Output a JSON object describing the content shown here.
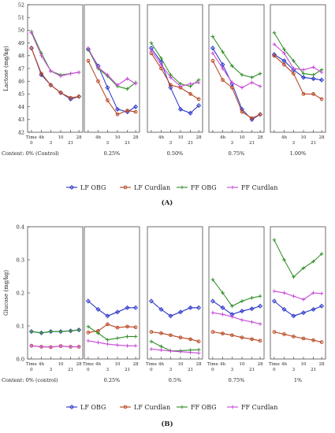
{
  "chart_data": [
    {
      "type": "line",
      "panel_label": "(A)",
      "ylabel": "Lactose (mg/kg)",
      "ylim": [
        42,
        52
      ],
      "yticks": [
        42,
        43,
        44,
        45,
        46,
        47,
        48,
        49,
        50,
        51,
        52
      ],
      "x": [
        "Time 0",
        "4h",
        "3",
        "10",
        "21",
        "28"
      ],
      "x_tick_rows": {
        "first_panel": {
          "row1": [
            "Time",
            "4h",
            "10",
            "28"
          ],
          "row2": [
            "0",
            "3",
            "21"
          ]
        },
        "other_panels": {
          "row1": [
            "4h",
            "10",
            "28"
          ],
          "row2": [
            "3",
            "21"
          ]
        }
      },
      "subplots": [
        {
          "label": "Content: 0% (Control)",
          "series": [
            {
              "name": "LF OBG",
              "values": [
                48.6,
                46.5,
                45.7,
                45.1,
                44.6,
                44.8
              ]
            },
            {
              "name": "LF Curdlan",
              "values": [
                48.6,
                46.6,
                45.7,
                45.1,
                44.7,
                44.8
              ]
            },
            {
              "name": "FF OBG",
              "values": [
                49.9,
                48.2,
                46.8,
                46.5,
                46.6,
                46.7
              ]
            },
            {
              "name": "FF Curdlan",
              "values": [
                49.8,
                48.0,
                46.8,
                46.4,
                46.6,
                46.7
              ]
            }
          ]
        },
        {
          "label": "0.25%",
          "series": [
            {
              "name": "LF OBG",
              "values": [
                48.5,
                47.2,
                45.5,
                43.8,
                43.6,
                44.0
              ]
            },
            {
              "name": "LF Curdlan",
              "values": [
                47.6,
                46.0,
                44.5,
                43.4,
                43.7,
                43.6
              ]
            },
            {
              "name": "FF OBG",
              "values": [
                48.5,
                47.0,
                46.4,
                45.6,
                45.4,
                45.9
              ]
            },
            {
              "name": "FF Curdlan",
              "values": [
                48.6,
                47.1,
                46.5,
                45.7,
                46.2,
                45.8
              ]
            }
          ]
        },
        {
          "label": "0.50%",
          "series": [
            {
              "name": "LF OBG",
              "values": [
                48.6,
                47.5,
                45.5,
                43.8,
                43.5,
                44.1
              ]
            },
            {
              "name": "LF Curdlan",
              "values": [
                48.2,
                47.0,
                45.7,
                45.5,
                45.0,
                44.6
              ]
            },
            {
              "name": "FF OBG",
              "values": [
                49.0,
                47.8,
                46.5,
                45.8,
                45.6,
                46.1
              ]
            },
            {
              "name": "FF Curdlan",
              "values": [
                48.4,
                47.3,
                46.3,
                45.6,
                45.8,
                45.9
              ]
            }
          ]
        },
        {
          "label": "0.75%",
          "series": [
            {
              "name": "LF OBG",
              "values": [
                48.6,
                47.3,
                45.8,
                43.8,
                43.0,
                43.4
              ]
            },
            {
              "name": "LF Curdlan",
              "values": [
                47.6,
                46.1,
                45.5,
                43.6,
                43.1,
                43.4
              ]
            },
            {
              "name": "FF OBG",
              "values": [
                49.5,
                48.3,
                47.2,
                46.5,
                46.3,
                46.6
              ]
            },
            {
              "name": "FF Curdlan",
              "values": [
                48.2,
                47.0,
                45.9,
                45.5,
                45.9,
                45.6
              ]
            }
          ]
        },
        {
          "label": "1.00%",
          "series": [
            {
              "name": "LF OBG",
              "values": [
                48.1,
                47.6,
                46.9,
                46.3,
                46.2,
                46.1
              ]
            },
            {
              "name": "LF Curdlan",
              "values": [
                48.0,
                47.3,
                46.6,
                45.0,
                45.0,
                44.6
              ]
            },
            {
              "name": "FF OBG",
              "values": [
                49.8,
                48.5,
                47.6,
                46.6,
                46.5,
                46.9
              ]
            },
            {
              "name": "FF Curdlan",
              "values": [
                48.9,
                48.2,
                47.0,
                46.9,
                47.1,
                46.7
              ]
            }
          ]
        }
      ],
      "legend": [
        "LF OBG",
        "LF Curdlan",
        "FF OBG",
        "FF Curdlan"
      ]
    },
    {
      "type": "line",
      "panel_label": "(B)",
      "ylabel": "Glucose (mg/kg)",
      "ylim": [
        0.0,
        0.4
      ],
      "yticks": [
        0.0,
        0.1,
        0.2,
        0.3,
        0.4
      ],
      "x": [
        "Time 0",
        "4h",
        "3",
        "10",
        "21",
        "28"
      ],
      "x_tick_rows": {
        "first_panel": {
          "row1": [
            "Time",
            "4h",
            "10",
            "28"
          ],
          "row2": [
            "0",
            "3",
            "21"
          ]
        },
        "other_panels": {
          "row1": [
            "Time",
            "4h",
            "10",
            "28"
          ],
          "row2": [
            "0",
            "3",
            "21"
          ]
        }
      },
      "subplots": [
        {
          "label": "Content: 0% (control)",
          "series": [
            {
              "name": "LF OBG",
              "values": [
                0.083,
                0.079,
                0.083,
                0.083,
                0.085,
                0.088
              ]
            },
            {
              "name": "LF Curdlan",
              "values": [
                0.04,
                0.037,
                0.036,
                0.039,
                0.037,
                0.037
              ]
            },
            {
              "name": "FF OBG",
              "values": [
                0.083,
                0.079,
                0.083,
                0.083,
                0.085,
                0.088
              ]
            },
            {
              "name": "FF Curdlan",
              "values": [
                0.04,
                0.037,
                0.036,
                0.039,
                0.037,
                0.037
              ]
            }
          ]
        },
        {
          "label": "0.25%",
          "series": [
            {
              "name": "LF OBG",
              "values": [
                0.175,
                0.15,
                0.13,
                0.142,
                0.155,
                0.155
              ]
            },
            {
              "name": "LF Curdlan",
              "values": [
                0.08,
                0.085,
                0.105,
                0.095,
                0.098,
                0.096
              ]
            },
            {
              "name": "FF OBG",
              "values": [
                0.098,
                0.078,
                0.058,
                0.063,
                0.068,
                0.068
              ]
            },
            {
              "name": "FF Curdlan",
              "values": [
                0.055,
                0.05,
                0.045,
                0.042,
                0.04,
                0.04
              ]
            }
          ]
        },
        {
          "label": "0.5%",
          "series": [
            {
              "name": "LF OBG",
              "values": [
                0.175,
                0.15,
                0.13,
                0.142,
                0.155,
                0.155
              ]
            },
            {
              "name": "LF Curdlan",
              "values": [
                0.082,
                0.078,
                0.072,
                0.065,
                0.06,
                0.053
              ]
            },
            {
              "name": "FF OBG",
              "values": [
                0.053,
                0.038,
                0.025,
                0.025,
                0.027,
                0.028
              ]
            },
            {
              "name": "FF Curdlan",
              "values": [
                0.03,
                0.027,
                0.024,
                0.022,
                0.02,
                0.018
              ]
            }
          ]
        },
        {
          "label": "0.75%",
          "series": [
            {
              "name": "LF OBG",
              "values": [
                0.175,
                0.155,
                0.135,
                0.145,
                0.152,
                0.16
              ]
            },
            {
              "name": "LF Curdlan",
              "values": [
                0.082,
                0.077,
                0.072,
                0.065,
                0.06,
                0.055
              ]
            },
            {
              "name": "FF OBG",
              "values": [
                0.24,
                0.2,
                0.16,
                0.175,
                0.185,
                0.19
              ]
            },
            {
              "name": "FF Curdlan",
              "values": [
                0.14,
                0.135,
                0.128,
                0.118,
                0.112,
                0.106
              ]
            }
          ]
        },
        {
          "label": "1%",
          "series": [
            {
              "name": "LF OBG",
              "values": [
                0.175,
                0.15,
                0.13,
                0.14,
                0.15,
                0.16
              ]
            },
            {
              "name": "LF Curdlan",
              "values": [
                0.082,
                0.075,
                0.068,
                0.062,
                0.057,
                0.051
              ]
            },
            {
              "name": "FF OBG",
              "values": [
                0.36,
                0.3,
                0.248,
                0.275,
                0.295,
                0.318
              ]
            },
            {
              "name": "FF Curdlan",
              "values": [
                0.205,
                0.2,
                0.19,
                0.18,
                0.2,
                0.198
              ]
            }
          ]
        }
      ],
      "legend": [
        "LF OBG",
        "LF Curdlan",
        "FF OBG",
        "FF Curdlan"
      ]
    }
  ],
  "colors": {
    "LF OBG": "#2a35c9",
    "LF Curdlan": "#b4401a",
    "FF OBG": "#2e8b25",
    "FF Curdlan": "#c648d6",
    "band_LF OBG": "#8fa3ec",
    "band_LF Curdlan": "#f2b8a8",
    "band_FF OBG": "#a8d69e",
    "band_FF Curdlan": "#ebb5f2"
  },
  "icons": {
    "LF OBG": "diamond-marker",
    "LF Curdlan": "circle-marker",
    "FF OBG": "plus-marker",
    "FF Curdlan": "plus-marker"
  }
}
